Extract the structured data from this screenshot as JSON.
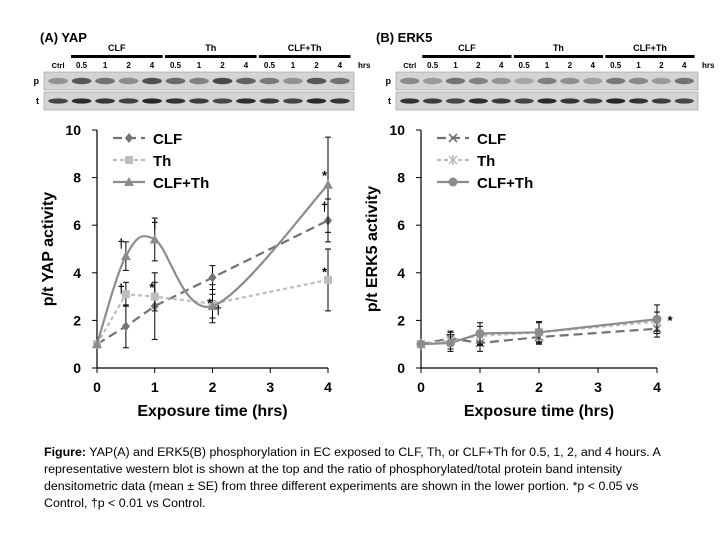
{
  "caption": {
    "lead": "Figure:",
    "body": " YAP(A) and ERK5(B) phosphorylation in EC exposed to CLF, Th, or CLF+Th for 0.5, 1, 2, and 4 hours. A representative western blot is shown at the top and the ratio of phosphorylated/total protein band intensity densitometric data (mean ± SE) from three different experiments are shown in the lower portion.  *p < 0.05 vs Control, †p < 0.01 vs Control."
  },
  "colors": {
    "clf": "#737373",
    "th": "#bdbdbd",
    "clf_th": "#8c8c8c"
  },
  "panels": [
    {
      "id": "A",
      "title": "(A) YAP",
      "blot": {
        "groups": [
          "CLF",
          "Th",
          "CLF+Th"
        ],
        "ctrl_label": "Ctrl",
        "time_labels": [
          "0.5",
          "1",
          "2",
          "4"
        ],
        "unit_label": "hrs",
        "rows": [
          "p",
          "t"
        ]
      },
      "chart_data": {
        "type": "line",
        "xlabel": "Exposure time (hrs)",
        "ylabel": "p/t YAP activity",
        "xlim": [
          0,
          4
        ],
        "ylim": [
          0,
          10
        ],
        "xticks": [
          "0",
          "1",
          "2",
          "3",
          "4"
        ],
        "yticks": [
          "0",
          "2",
          "4",
          "6",
          "8",
          "10"
        ],
        "legend": "top-left",
        "series": [
          {
            "name": "CLF",
            "marker": "diamond",
            "dash": "long",
            "curve": false,
            "x": [
              0,
              0.5,
              1,
              2,
              4
            ],
            "y": [
              1,
              1.75,
              2.6,
              3.8,
              6.2
            ],
            "err": [
              0,
              0.9,
              1.4,
              0.5,
              0.9
            ]
          },
          {
            "name": "Th",
            "marker": "square",
            "dash": "short",
            "curve": false,
            "x": [
              0,
              0.5,
              1,
              2,
              4
            ],
            "y": [
              1,
              3.1,
              3.0,
              2.7,
              3.7
            ],
            "err": [
              0,
              0.5,
              0.6,
              0.8,
              1.3
            ]
          },
          {
            "name": "CLF+Th",
            "marker": "triangle",
            "dash": "solid",
            "curve": true,
            "x": [
              0,
              0.5,
              1,
              2,
              4
            ],
            "y": [
              1,
              4.7,
              5.4,
              2.6,
              7.7
            ],
            "err": [
              0,
              0.6,
              0.9,
              0.5,
              2.0
            ]
          }
        ],
        "annotations": [
          {
            "text": "†",
            "x": 0.42,
            "y": 5.05
          },
          {
            "text": "†",
            "x": 0.42,
            "y": 3.15
          },
          {
            "text": "†",
            "x": 1.0,
            "y": 5.85
          },
          {
            "text": "*",
            "x": 0.95,
            "y": 3.2
          },
          {
            "text": "*",
            "x": 1.95,
            "y": 2.55
          },
          {
            "text": "†",
            "x": 2.1,
            "y": 2.25
          },
          {
            "text": "*",
            "x": 3.94,
            "y": 7.9
          },
          {
            "text": "†",
            "x": 3.94,
            "y": 6.6
          },
          {
            "text": "*",
            "x": 3.94,
            "y": 3.85
          }
        ]
      }
    },
    {
      "id": "B",
      "title": "(B) ERK5",
      "blot": {
        "groups": [
          "CLF",
          "Th",
          "CLF+Th"
        ],
        "ctrl_label": "Ctrl",
        "time_labels": [
          "0.5",
          "1",
          "2",
          "4"
        ],
        "unit_label": "hrs",
        "rows": [
          "p",
          "t"
        ]
      },
      "chart_data": {
        "type": "line",
        "xlabel": "Exposure time (hrs)",
        "ylabel": "p/t ERK5 activity",
        "xlim": [
          0,
          4
        ],
        "ylim": [
          0,
          10
        ],
        "xticks": [
          "0",
          "1",
          "2",
          "3",
          "4"
        ],
        "yticks": [
          "0",
          "2",
          "4",
          "6",
          "8",
          "10"
        ],
        "legend": "top-left",
        "series": [
          {
            "name": "CLF",
            "marker": "x",
            "dash": "long",
            "curve": false,
            "x": [
              0,
              0.5,
              1,
              2,
              4
            ],
            "y": [
              1,
              1.25,
              1.05,
              1.3,
              1.65
            ],
            "err": [
              0,
              0.3,
              0.35,
              0.3,
              0.35
            ]
          },
          {
            "name": "Th",
            "marker": "star",
            "dash": "short",
            "curve": false,
            "x": [
              0,
              0.5,
              1,
              2,
              4
            ],
            "y": [
              1,
              1.15,
              1.35,
              1.5,
              1.95
            ],
            "err": [
              0,
              0.35,
              0.4,
              0.4,
              0.4
            ]
          },
          {
            "name": "CLF+Th",
            "marker": "circle",
            "dash": "solid",
            "curve": false,
            "x": [
              0,
              0.5,
              1,
              2,
              4
            ],
            "y": [
              1,
              1.05,
              1.45,
              1.5,
              2.05
            ],
            "err": [
              0,
              0.35,
              0.45,
              0.45,
              0.6
            ]
          }
        ],
        "annotations": [
          {
            "text": "*",
            "x": 4.22,
            "y": 1.8
          }
        ]
      }
    }
  ]
}
